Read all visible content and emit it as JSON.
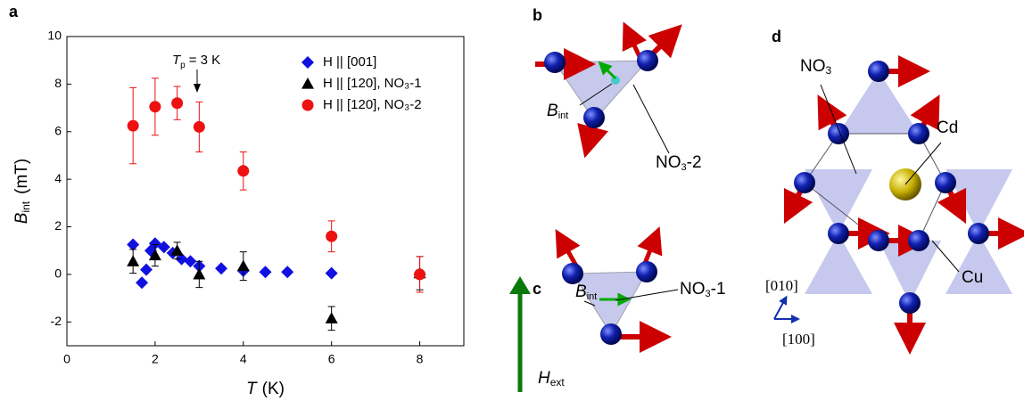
{
  "chart_data": {
    "type": "scatter",
    "xlabel": {
      "symbol": "T",
      "unit": "(K)"
    },
    "ylabel": {
      "symbol": "B",
      "sub": "int",
      "unit": "(mT)"
    },
    "annotation": {
      "symbol": "T",
      "sub": "p",
      "text": "= 3 K"
    },
    "xlim": [
      0,
      9
    ],
    "xticks": [
      0,
      2,
      4,
      6,
      8
    ],
    "ylim": [
      -3,
      10
    ],
    "yticks": [
      -2,
      0,
      2,
      4,
      6,
      8,
      10
    ],
    "legend": "top-right",
    "series": [
      {
        "name": "H || [001]",
        "color": "#1010e0",
        "marker": "diamond",
        "x": [
          1.5,
          1.7,
          1.8,
          1.9,
          2.0,
          2.2,
          2.4,
          2.6,
          2.8,
          3.0,
          3.5,
          4.0,
          4.5,
          5.0,
          6.0,
          8.0
        ],
        "values": [
          1.25,
          -0.35,
          0.2,
          1.0,
          1.3,
          1.15,
          0.9,
          0.65,
          0.55,
          0.35,
          0.25,
          0.15,
          0.1,
          0.1,
          0.05,
          0.0
        ]
      },
      {
        "name": "H || [120],  NO₃-1",
        "color": "#000000",
        "marker": "triangle",
        "x": [
          1.5,
          2.0,
          2.5,
          3.0,
          4.0,
          6.0,
          8.0
        ],
        "values": [
          0.55,
          0.8,
          1.0,
          0.0,
          0.35,
          -1.85,
          0.05
        ],
        "errors": [
          0.5,
          0.45,
          0.35,
          0.55,
          0.6,
          0.5,
          0.7
        ]
      },
      {
        "name": "H || [120],  NO₃-2",
        "color": "#ee1111",
        "marker": "circle",
        "x": [
          1.5,
          2.0,
          2.5,
          3.0,
          4.0,
          6.0,
          8.0
        ],
        "values": [
          6.25,
          7.05,
          7.2,
          6.2,
          4.35,
          1.6,
          0.0
        ],
        "errors": [
          1.6,
          1.2,
          0.7,
          1.05,
          0.8,
          0.65,
          0.75
        ]
      }
    ]
  },
  "panel_labels": [
    "a",
    "b",
    "c",
    "d"
  ],
  "diagrams": {
    "b": {
      "field": {
        "symbol": "B",
        "sub": "int"
      },
      "site": {
        "base": "NO",
        "sub": "3",
        "suffix": "-2"
      }
    },
    "c": {
      "field": {
        "symbol": "B",
        "sub": "int"
      },
      "site": {
        "base": "NO",
        "sub": "3",
        "suffix": "-1"
      },
      "external": {
        "symbol": "H",
        "sub": "ext"
      }
    },
    "d": {
      "nitrate": {
        "base": "NO",
        "sub": "3"
      },
      "cd": "Cd",
      "cu": "Cu",
      "axis1": "[010]",
      "axis2": "[100]"
    }
  }
}
